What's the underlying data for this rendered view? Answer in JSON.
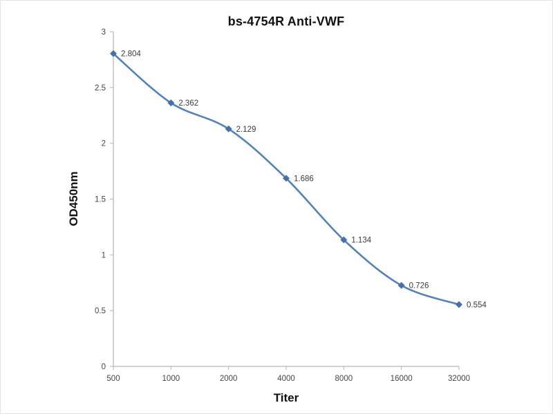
{
  "chart_data": {
    "type": "line",
    "title": "bs-4754R Anti-VWF",
    "xlabel": "Titer",
    "ylabel": "OD450nm",
    "categories": [
      "500",
      "1000",
      "2000",
      "4000",
      "8000",
      "16000",
      "32000"
    ],
    "series": [
      {
        "name": "Anti-VWF titer curve",
        "values": [
          2.804,
          2.362,
          2.129,
          1.686,
          1.134,
          0.726,
          0.554
        ],
        "point_labels": [
          "2.804",
          "2.362",
          "2.129",
          "1.686",
          "1.134",
          "0.726",
          "0.554"
        ]
      }
    ],
    "ylim": [
      0,
      3
    ],
    "y_ticks": [
      0,
      0.5,
      1,
      1.5,
      2,
      2.5,
      3
    ],
    "y_tick_labels": [
      "0",
      "0.5",
      "1",
      "1.5",
      "2",
      "2.5",
      "3"
    ],
    "grid": false,
    "legend_position": "none",
    "marker_shape": "diamond",
    "line_color": "#4f81bd",
    "marker_color": "#4472a8",
    "axis_color": "#b3b3b3"
  }
}
